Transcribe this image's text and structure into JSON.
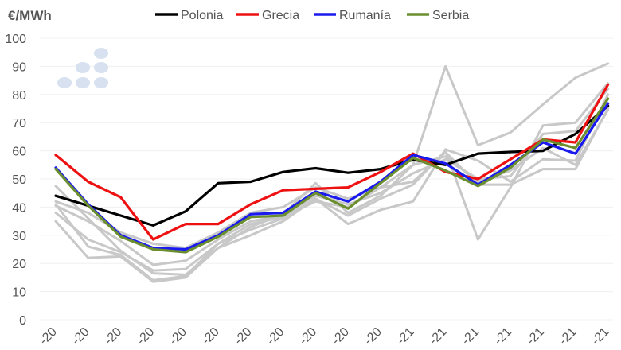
{
  "chart_data": {
    "type": "line",
    "title": "",
    "ylabel": "€/MWh",
    "xlabel": "",
    "ylim": [
      0,
      100
    ],
    "yticks": [
      0,
      10,
      20,
      30,
      40,
      50,
      60,
      70,
      80,
      90,
      100
    ],
    "categories": [
      "-20",
      "-20",
      "-20",
      "-20",
      "-20",
      "-20",
      "-20",
      "-20",
      "-20",
      "-20",
      "-20",
      "-21",
      "-21",
      "-21",
      "-21",
      "-21",
      "-21",
      "-21"
    ],
    "series": [
      {
        "name": "Polonia",
        "color": "#000000",
        "legend": true,
        "values": [
          44,
          40.5,
          37,
          33.5,
          38.5,
          48.5,
          49,
          52.5,
          53.8,
          52.2,
          53.5,
          56.8,
          55,
          59,
          59.6,
          60,
          66,
          76
        ]
      },
      {
        "name": "Grecia",
        "color": "#ee1111",
        "legend": true,
        "values": [
          58.5,
          49,
          43.5,
          28.5,
          34,
          34,
          41,
          46,
          46.5,
          47,
          52.5,
          59,
          52.5,
          50,
          57,
          64,
          63,
          83.5
        ]
      },
      {
        "name": "Rumanía",
        "color": "#1a1aee",
        "legend": true,
        "values": [
          54,
          41,
          30,
          25.5,
          25,
          30,
          37.5,
          38,
          45.5,
          42,
          49,
          58.5,
          55.5,
          48,
          55,
          63,
          59,
          76.8
        ]
      },
      {
        "name": "Serbia",
        "color": "#6b8e2f",
        "legend": true,
        "values": [
          53.5,
          40.5,
          29.5,
          25,
          24,
          29.5,
          36.5,
          37,
          45,
          39.5,
          48.5,
          57.5,
          53,
          47.5,
          54,
          64,
          61,
          78.5
        ]
      },
      {
        "name": "",
        "color": "#c8c8c8",
        "legend": false,
        "values": [
          42,
          38,
          31,
          27,
          25.5,
          31,
          38,
          40,
          47,
          43,
          47,
          55,
          90,
          62,
          66.5,
          76.5,
          86,
          91
        ]
      },
      {
        "name": "",
        "color": "#c8c8c8",
        "legend": false,
        "values": [
          38,
          28.5,
          24,
          17.5,
          18,
          27,
          32,
          36,
          43,
          37,
          43,
          48,
          60,
          28.5,
          47,
          69,
          70,
          84
        ]
      },
      {
        "name": "",
        "color": "#c8c8c8",
        "legend": false,
        "values": [
          35,
          22,
          22.5,
          13.5,
          15,
          25.5,
          30,
          35,
          43,
          34,
          39,
          42,
          60.5,
          56.5,
          49,
          57,
          56.5,
          80
        ]
      },
      {
        "name": "",
        "color": "#c8c8c8",
        "legend": false,
        "values": [
          47.5,
          36,
          24.5,
          16.5,
          16,
          25.5,
          33,
          37.5,
          48.5,
          38,
          44,
          55,
          58,
          49,
          53,
          61,
          55,
          74.5
        ]
      },
      {
        "name": "",
        "color": "#c8c8c8",
        "legend": false,
        "values": [
          41,
          26,
          23,
          14,
          15.5,
          27,
          34,
          36.5,
          42,
          40,
          47,
          49,
          59.5,
          48,
          48,
          53.5,
          53.5,
          75
        ]
      },
      {
        "name": "",
        "color": "#c8c8c8",
        "legend": false,
        "values": [
          40.5,
          35,
          28,
          19.5,
          21,
          28.5,
          35,
          37,
          44,
          41,
          45,
          52,
          57,
          50,
          51,
          66,
          67,
          82
        ]
      }
    ]
  },
  "logo": "logo-dots"
}
